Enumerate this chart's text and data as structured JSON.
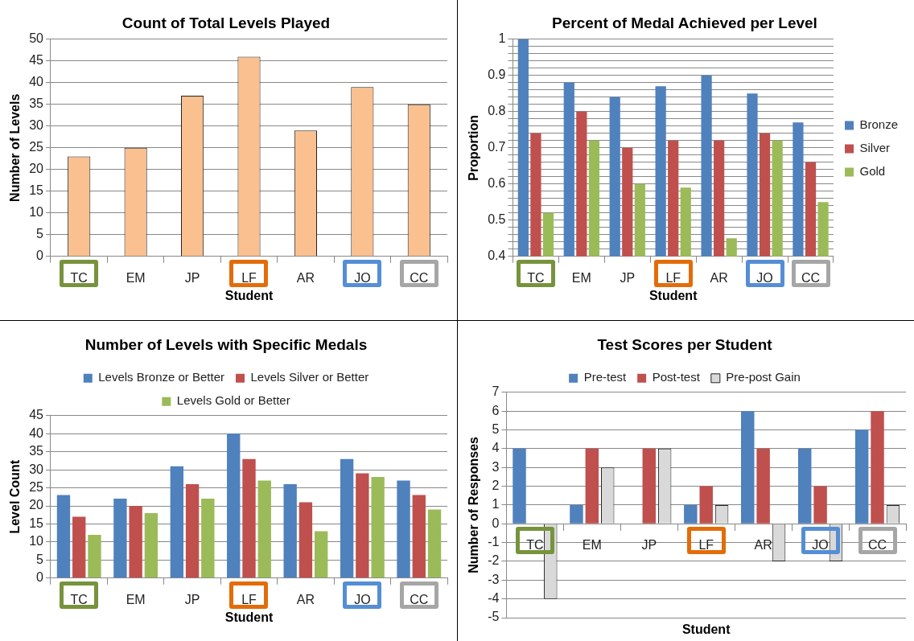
{
  "chart_data": [
    {
      "type": "bar",
      "title": "Count of Total Levels Played",
      "xlabel": "Student",
      "ylabel": "Number of Levels",
      "categories": [
        "TC",
        "EM",
        "JP",
        "LF",
        "AR",
        "JO",
        "CC"
      ],
      "series": [
        {
          "color": "#fac090",
          "values": [
            23,
            25,
            37,
            46,
            29,
            39,
            35
          ]
        }
      ],
      "ylim": [
        0,
        50
      ],
      "yticks": [
        0,
        5,
        10,
        15,
        20,
        25,
        30,
        35,
        40,
        45,
        50
      ],
      "grid": "y",
      "legend": false
    },
    {
      "type": "bar",
      "title": "Percent of Medal Achieved per Level",
      "xlabel": "Student",
      "ylabel": "Proportion",
      "categories": [
        "TC",
        "EM",
        "JP",
        "LF",
        "AR",
        "JO",
        "CC"
      ],
      "series": [
        {
          "name": "Bronze",
          "color": "#4f81bd",
          "values": [
            1,
            0.88,
            0.84,
            0.87,
            0.9,
            0.85,
            0.77
          ]
        },
        {
          "name": "Silver",
          "color": "#c0504d",
          "values": [
            0.74,
            0.8,
            0.7,
            0.72,
            0.72,
            0.74,
            0.66
          ]
        },
        {
          "name": "Gold",
          "color": "#9bbb59",
          "values": [
            0.52,
            0.72,
            0.6,
            0.59,
            0.45,
            0.72,
            0.55
          ]
        }
      ],
      "ylim": [
        0.4,
        1
      ],
      "yticks": [
        {
          "value": 0.4,
          "label": "0.4"
        },
        {
          "value": 0.42,
          "label": null
        },
        {
          "value": 0.44,
          "label": null
        },
        {
          "value": 0.46,
          "label": null
        },
        {
          "value": 0.48,
          "label": null
        },
        {
          "value": 0.5,
          "label": "0.5"
        },
        {
          "value": 0.52,
          "label": null
        },
        {
          "value": 0.54,
          "label": null
        },
        {
          "value": 0.56,
          "label": null
        },
        {
          "value": 0.58,
          "label": null
        },
        {
          "value": 0.6,
          "label": "0.6"
        },
        {
          "value": 0.62,
          "label": null
        },
        {
          "value": 0.64,
          "label": null
        },
        {
          "value": 0.66,
          "label": null
        },
        {
          "value": 0.68,
          "label": null
        },
        {
          "value": 0.7,
          "label": "0.7"
        },
        {
          "value": 0.72,
          "label": null
        },
        {
          "value": 0.74,
          "label": null
        },
        {
          "value": 0.76,
          "label": null
        },
        {
          "value": 0.78,
          "label": null
        },
        {
          "value": 0.8,
          "label": "0.8"
        },
        {
          "value": 0.82,
          "label": null
        },
        {
          "value": 0.84,
          "label": null
        },
        {
          "value": 0.86,
          "label": null
        },
        {
          "value": 0.88,
          "label": null
        },
        {
          "value": 0.9,
          "label": "0.9"
        },
        {
          "value": 0.92,
          "label": null
        },
        {
          "value": 0.94,
          "label": null
        },
        {
          "value": 0.96,
          "label": null
        },
        {
          "value": 0.98,
          "label": null
        },
        {
          "value": 1,
          "label": "1"
        }
      ],
      "grid": "y",
      "legend": "right"
    },
    {
      "type": "bar",
      "title": "Number of Levels with Specific Medals",
      "xlabel": "Student",
      "ylabel": "Level Count",
      "categories": [
        "TC",
        "EM",
        "JP",
        "LF",
        "AR",
        "JO",
        "CC"
      ],
      "series": [
        {
          "name": "Levels Bronze or Better",
          "color": "#4f81bd",
          "values": [
            23,
            22,
            31,
            40,
            26,
            33,
            27
          ]
        },
        {
          "name": "Levels Silver or Better",
          "color": "#c0504d",
          "values": [
            17,
            20,
            26,
            33,
            21,
            29,
            23
          ]
        },
        {
          "name": "Levels Gold or Better",
          "color": "#9bbb59",
          "values": [
            12,
            18,
            22,
            27,
            13,
            28,
            19
          ]
        }
      ],
      "ylim": [
        0,
        45
      ],
      "yticks": [
        0,
        5,
        10,
        15,
        20,
        25,
        30,
        35,
        40,
        45
      ],
      "grid": "y",
      "legend": "top"
    },
    {
      "type": "bar",
      "title": "Test Scores per Student",
      "xlabel": "Student",
      "ylabel": "Number of Responses",
      "categories": [
        "TC",
        "EM",
        "JP",
        "LF",
        "AR",
        "JO",
        "CC"
      ],
      "series": [
        {
          "name": "Pre-test",
          "color": "#4f81bd",
          "values": [
            4,
            1,
            0,
            1,
            6,
            4,
            5
          ]
        },
        {
          "name": "Post-test",
          "color": "#c0504d",
          "values": [
            0,
            4,
            4,
            2,
            4,
            2,
            6
          ]
        },
        {
          "name": "Pre-post Gain",
          "color": "#d9d9d9",
          "values": [
            -4,
            3,
            4,
            1,
            -2,
            -2,
            1
          ]
        }
      ],
      "ylim": [
        -5,
        7
      ],
      "yticks": [
        -5,
        -4,
        -3,
        -2,
        -1,
        0,
        1,
        2,
        3,
        4,
        5,
        6,
        7
      ],
      "grid": "y",
      "legend": "top"
    }
  ]
}
